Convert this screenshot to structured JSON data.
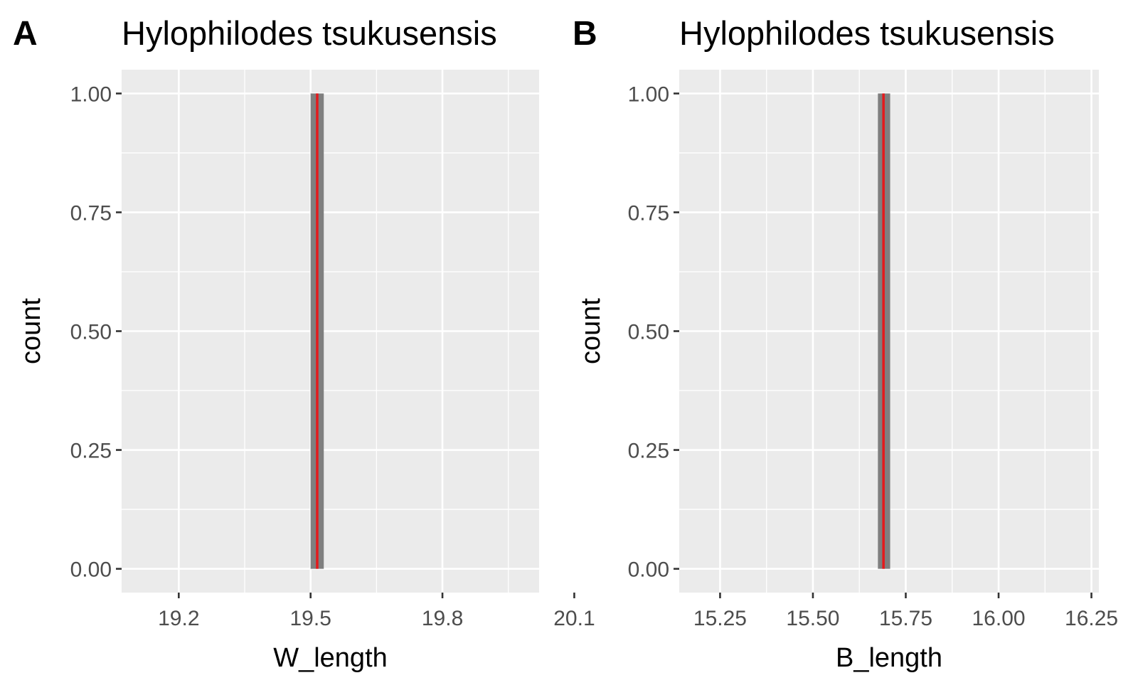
{
  "chart_data": [
    {
      "type": "bar",
      "panel_tag": "A",
      "title": "Hylophilodes tsukusensis",
      "xlabel": "W_length",
      "ylabel": "count",
      "xlim": [
        19.07,
        20.02
      ],
      "ylim": [
        -0.05,
        1.05
      ],
      "x_ticks": [
        19.2,
        19.5,
        19.8,
        20.1
      ],
      "x_tick_labels": [
        "19.2",
        "19.5",
        "19.8",
        "20.1"
      ],
      "y_ticks": [
        0,
        0.25,
        0.5,
        0.75,
        1
      ],
      "y_tick_labels": [
        "0.00",
        "0.25",
        "0.50",
        "0.75",
        "1.00"
      ],
      "bars": [
        {
          "x_start": 19.5,
          "x_end": 19.53,
          "count": 1
        }
      ],
      "vline": {
        "x": 19.515,
        "color": "#e41a1c"
      },
      "grid": true,
      "bar_color": "#7f7f7f",
      "panel_color": "#ebebeb"
    },
    {
      "type": "bar",
      "panel_tag": "B",
      "title": "Hylophilodes tsukusensis",
      "xlabel": "B_length",
      "ylabel": "count",
      "xlim": [
        15.14,
        16.27
      ],
      "ylim": [
        -0.05,
        1.05
      ],
      "x_ticks": [
        15.25,
        15.5,
        15.75,
        16,
        16.25
      ],
      "x_tick_labels": [
        "15.25",
        "15.50",
        "15.75",
        "16.00",
        "16.25"
      ],
      "y_ticks": [
        0,
        0.25,
        0.5,
        0.75,
        1
      ],
      "y_tick_labels": [
        "0.00",
        "0.25",
        "0.50",
        "0.75",
        "1.00"
      ],
      "bars": [
        {
          "x_start": 15.675,
          "x_end": 15.708,
          "count": 1
        }
      ],
      "vline": {
        "x": 15.69,
        "color": "#e41a1c"
      },
      "grid": true,
      "bar_color": "#7f7f7f",
      "panel_color": "#ebebeb"
    }
  ]
}
